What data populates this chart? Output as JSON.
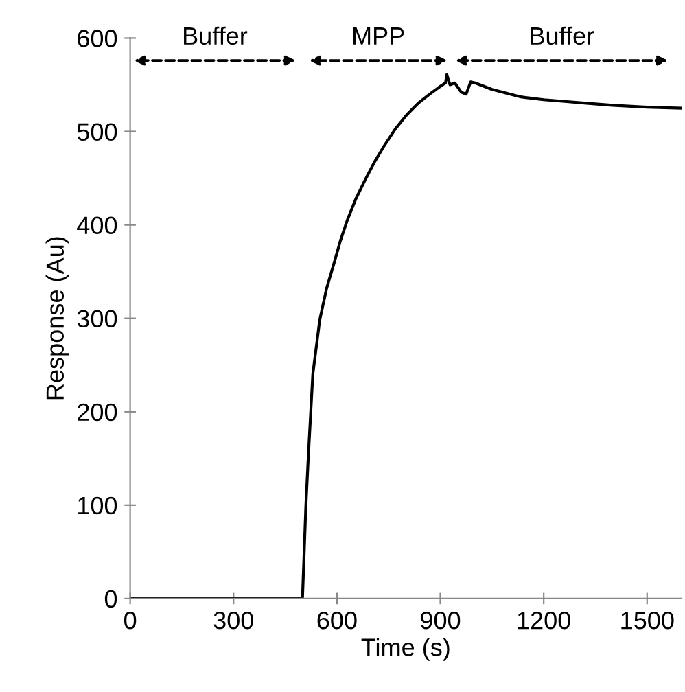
{
  "chart_data": {
    "type": "line",
    "xlabel": "Time (s)",
    "ylabel": "Response (Au)",
    "xlim": [
      0,
      1600
    ],
    "ylim": [
      0,
      600
    ],
    "xticks": [
      0,
      300,
      600,
      900,
      1200,
      1500
    ],
    "yticks": [
      0,
      100,
      200,
      300,
      400,
      500,
      600
    ],
    "grid": false,
    "legend": false,
    "marker": "none",
    "line_style": "solid",
    "series": [
      {
        "color": "#000000",
        "x": [
          0,
          100,
          200,
          300,
          400,
          500,
          505,
          510,
          517,
          530,
          550,
          570,
          590,
          610,
          630,
          655,
          683,
          710,
          736,
          770,
          803,
          835,
          869,
          895,
          915,
          919,
          928,
          942,
          961,
          975,
          988,
          1001,
          1050,
          1134,
          1200,
          1267,
          1330,
          1400,
          1500,
          1598
        ],
        "values": [
          0,
          0,
          0,
          0,
          0,
          0,
          50,
          100,
          152,
          240,
          298,
          332,
          357,
          383,
          405,
          428,
          449,
          468,
          484,
          503,
          518,
          530,
          540,
          547,
          552,
          561,
          550,
          552,
          542,
          540,
          553,
          552,
          545,
          537,
          534,
          532,
          530,
          528,
          526,
          525
        ]
      }
    ],
    "annotations": [
      "Buffer",
      "MPP",
      "Buffer"
    ]
  }
}
